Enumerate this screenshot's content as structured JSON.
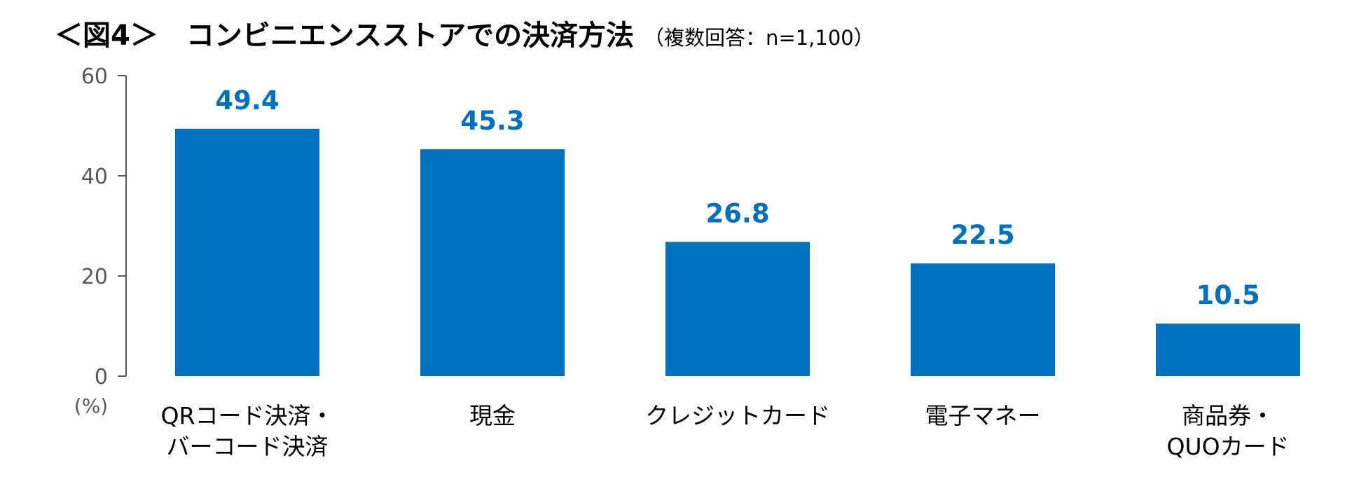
{
  "title": {
    "main": "＜図4＞　コンビニエンスストアでの決済方法",
    "sub": "（複数回答：n=1,100）"
  },
  "colors": {
    "bar": "#0070C0",
    "value_label": "#0070C0",
    "axis": "#595959"
  },
  "chart_data": {
    "type": "bar",
    "title": "＜図4＞　コンビニエンスストアでの決済方法（複数回答：n=1,100）",
    "categories": [
      [
        "QRコード決済・",
        "バーコード決済"
      ],
      [
        "現金"
      ],
      [
        "クレジットカード"
      ],
      [
        "電子マネー"
      ],
      [
        "商品券・",
        "QUOカード"
      ]
    ],
    "values": [
      49.4,
      45.3,
      26.8,
      22.5,
      10.5
    ],
    "value_labels": [
      "49.4",
      "45.3",
      "26.8",
      "22.5",
      "10.5"
    ],
    "yticks": [
      "0",
      "20",
      "40",
      "60"
    ],
    "ytick_values": [
      0,
      20,
      40,
      60
    ],
    "ylim": [
      0,
      60
    ],
    "ylabel": "(%)",
    "xlabel": "",
    "grid": false,
    "legend": "none"
  }
}
